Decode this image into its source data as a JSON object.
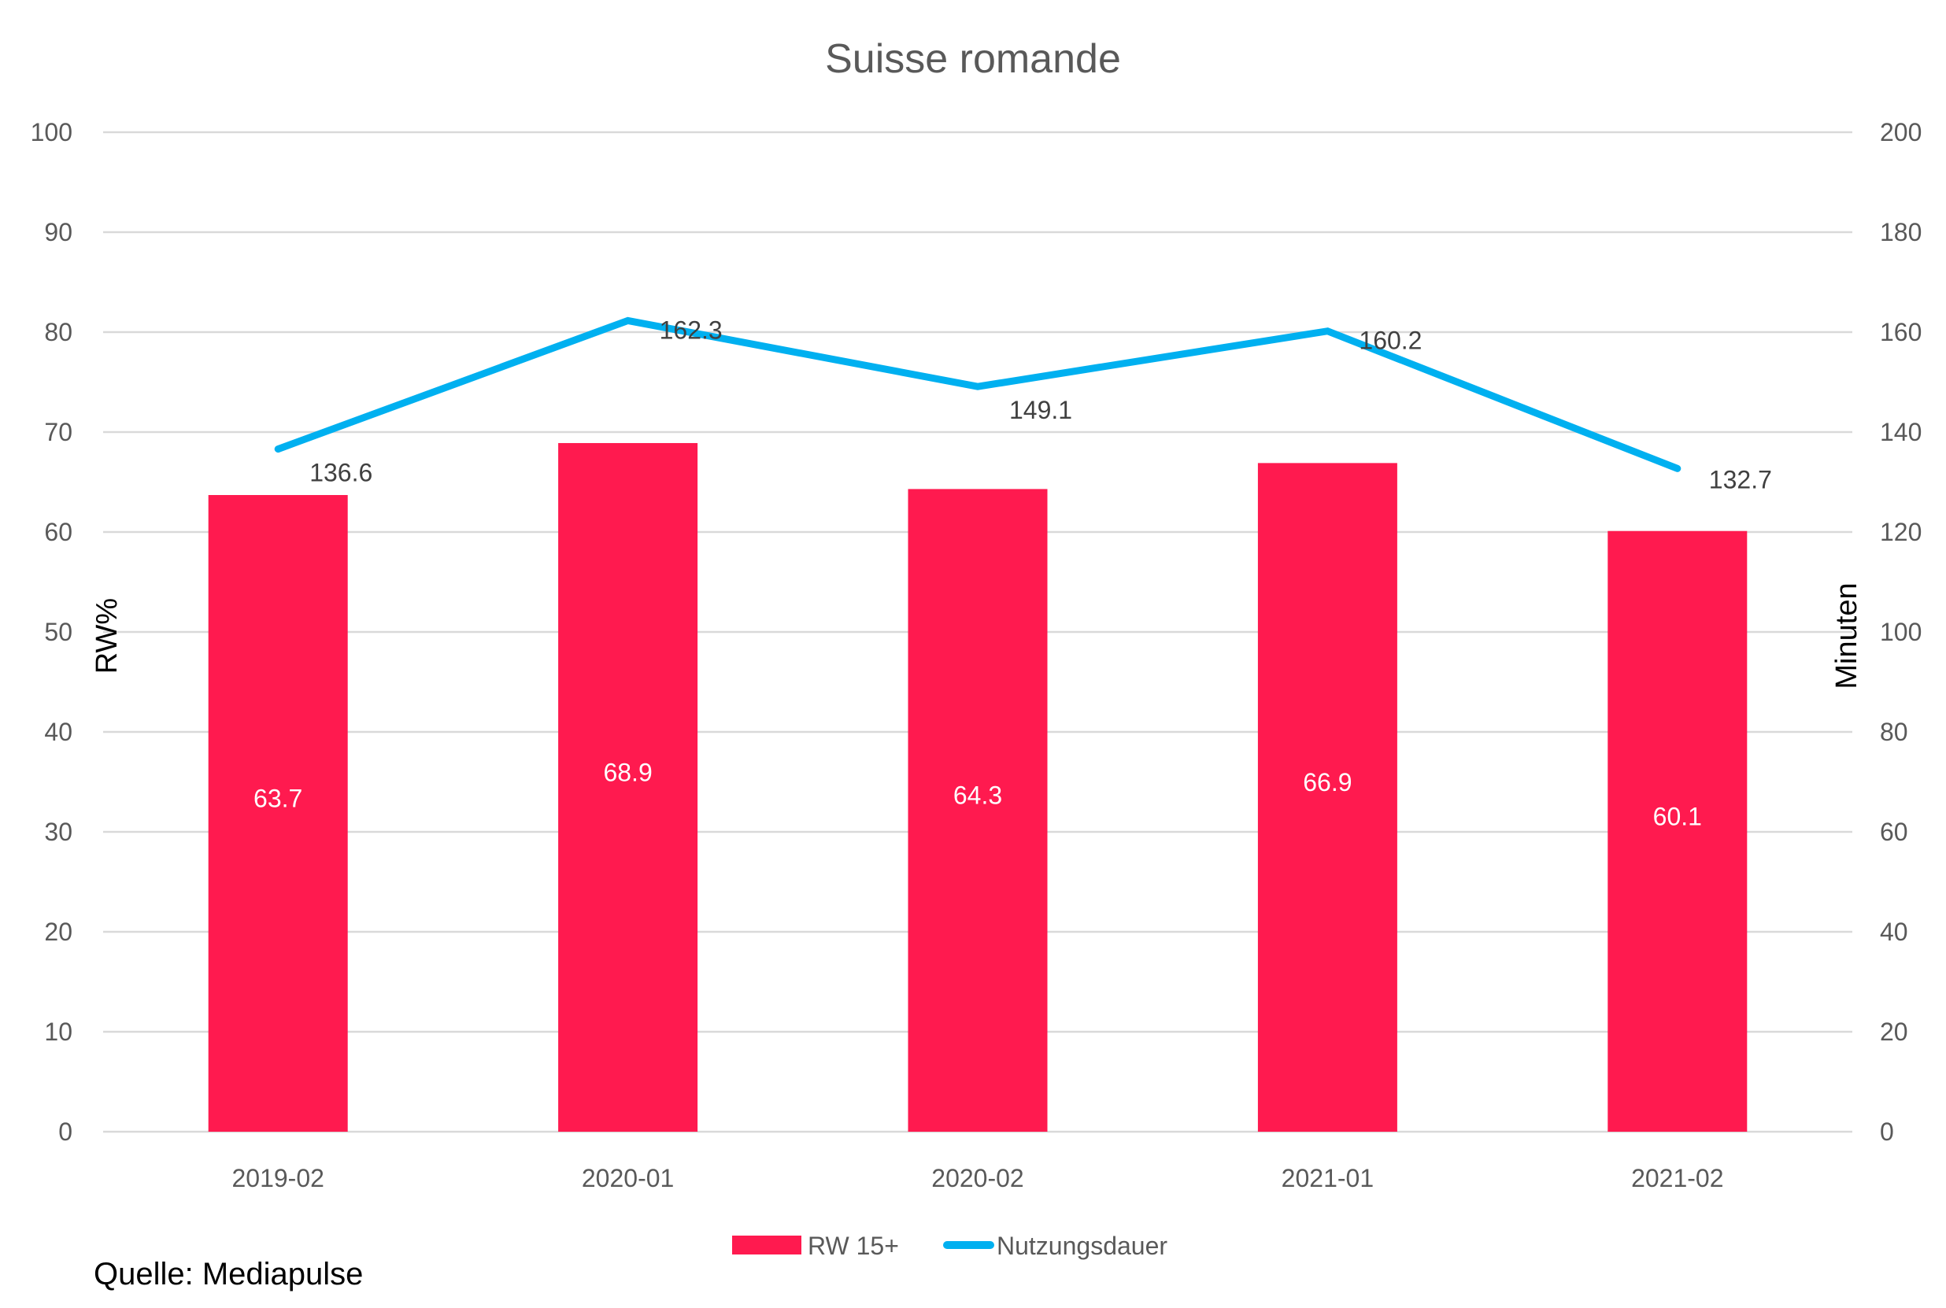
{
  "chart_data": {
    "type": "bar+line",
    "title": "Suisse romande",
    "categories": [
      "2019-02",
      "2020-01",
      "2020-02",
      "2021-01",
      "2021-02"
    ],
    "series": [
      {
        "name": "RW 15+",
        "type": "bar",
        "axis": "left",
        "color": "#FF1A4F",
        "values": [
          63.7,
          68.9,
          64.3,
          66.9,
          60.1
        ],
        "labels": [
          "63.7",
          "68.9",
          "64.3",
          "66.9",
          "60.1"
        ]
      },
      {
        "name": "Nutzungsdauer",
        "type": "line",
        "axis": "right",
        "color": "#00B0F0",
        "values": [
          136.6,
          162.3,
          149.1,
          160.2,
          132.7
        ],
        "labels": [
          "136.6",
          "162.3",
          "149.1",
          "160.2",
          "132.7"
        ]
      }
    ],
    "ylabel": "RW%",
    "y2label": "Minuten",
    "ylim": [
      0,
      100
    ],
    "y2lim": [
      0,
      200
    ],
    "yticks": [
      "0",
      "10",
      "20",
      "30",
      "40",
      "50",
      "60",
      "70",
      "80",
      "90",
      "100"
    ],
    "y2ticks": [
      "0",
      "20",
      "40",
      "60",
      "80",
      "100",
      "120",
      "140",
      "160",
      "180",
      "200"
    ],
    "grid": true,
    "gridColor": "#D9D9D9",
    "legend": "bottom"
  },
  "source": "Quelle: Mediapulse"
}
